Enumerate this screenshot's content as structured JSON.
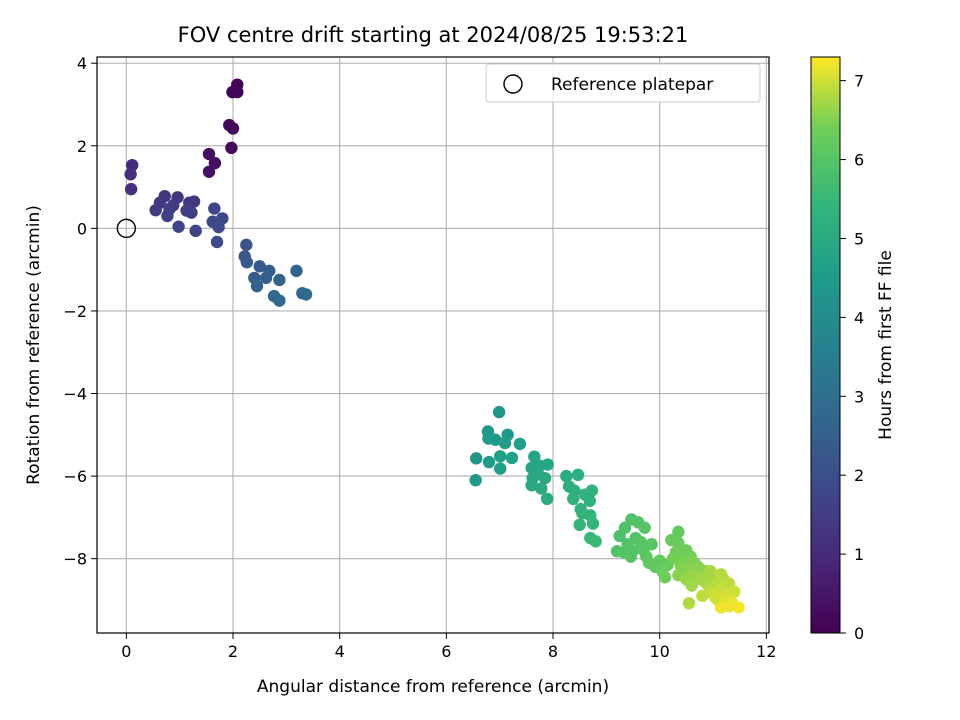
{
  "chart_data": {
    "type": "scatter",
    "title": "FOV centre drift starting at 2024/08/25 19:53:21",
    "xlabel": "Angular distance from reference (arcmin)",
    "ylabel": "Rotation from reference (arcmin)",
    "xlim": [
      -0.55,
      12.05
    ],
    "ylim": [
      -9.8,
      4.15
    ],
    "xticks": [
      0,
      2,
      4,
      6,
      8,
      10,
      12
    ],
    "yticks": [
      -8,
      -6,
      -4,
      -2,
      0,
      2,
      4
    ],
    "xtick_labels": [
      "0",
      "2",
      "4",
      "6",
      "8",
      "10",
      "12"
    ],
    "ytick_labels": [
      "−8",
      "−6",
      "−4",
      "−2",
      "0",
      "2",
      "4"
    ],
    "grid": true,
    "legend": {
      "position": "top-right",
      "entries": [
        "Reference platepar"
      ]
    },
    "reference_point": {
      "x": 0,
      "y": 0
    },
    "colorbar": {
      "label": "Hours from first FF file",
      "colormap": "viridis",
      "range": [
        0,
        7.3
      ],
      "ticks": [
        0,
        1,
        2,
        3,
        4,
        5,
        6,
        7
      ],
      "tick_labels": [
        "0",
        "1",
        "2",
        "3",
        "4",
        "5",
        "6",
        "7"
      ]
    },
    "points": [
      {
        "x": 2.08,
        "y": 3.48,
        "c": 0.05
      },
      {
        "x": 1.99,
        "y": 3.3,
        "c": 0.08
      },
      {
        "x": 2.08,
        "y": 3.3,
        "c": 0.1
      },
      {
        "x": 1.93,
        "y": 2.5,
        "c": 0.15
      },
      {
        "x": 2.0,
        "y": 2.42,
        "c": 0.18
      },
      {
        "x": 1.97,
        "y": 1.95,
        "c": 0.22
      },
      {
        "x": 1.55,
        "y": 1.8,
        "c": 0.28
      },
      {
        "x": 1.66,
        "y": 1.58,
        "c": 0.32
      },
      {
        "x": 1.55,
        "y": 1.37,
        "c": 0.38
      },
      {
        "x": 0.11,
        "y": 1.53,
        "c": 1.05
      },
      {
        "x": 0.08,
        "y": 1.31,
        "c": 1.1
      },
      {
        "x": 0.09,
        "y": 0.95,
        "c": 1.15
      },
      {
        "x": 0.72,
        "y": 0.78,
        "c": 1.25
      },
      {
        "x": 0.96,
        "y": 0.75,
        "c": 1.3
      },
      {
        "x": 0.63,
        "y": 0.62,
        "c": 1.35
      },
      {
        "x": 1.18,
        "y": 0.62,
        "c": 1.4
      },
      {
        "x": 1.27,
        "y": 0.65,
        "c": 1.42
      },
      {
        "x": 0.88,
        "y": 0.56,
        "c": 1.45
      },
      {
        "x": 0.55,
        "y": 0.44,
        "c": 1.5
      },
      {
        "x": 0.81,
        "y": 0.47,
        "c": 1.52
      },
      {
        "x": 1.13,
        "y": 0.43,
        "c": 1.55
      },
      {
        "x": 1.22,
        "y": 0.38,
        "c": 1.58
      },
      {
        "x": 0.77,
        "y": 0.3,
        "c": 1.6
      },
      {
        "x": 0.98,
        "y": 0.04,
        "c": 1.65
      },
      {
        "x": 1.3,
        "y": -0.06,
        "c": 1.7
      },
      {
        "x": 1.65,
        "y": 0.48,
        "c": 1.75
      },
      {
        "x": 1.62,
        "y": 0.16,
        "c": 1.78
      },
      {
        "x": 1.8,
        "y": 0.24,
        "c": 1.82
      },
      {
        "x": 1.73,
        "y": 0.03,
        "c": 1.85
      },
      {
        "x": 1.7,
        "y": -0.33,
        "c": 1.9
      },
      {
        "x": 2.25,
        "y": -0.4,
        "c": 2.2
      },
      {
        "x": 2.22,
        "y": -0.68,
        "c": 2.25
      },
      {
        "x": 2.26,
        "y": -0.82,
        "c": 2.3
      },
      {
        "x": 2.5,
        "y": -0.92,
        "c": 2.35
      },
      {
        "x": 2.68,
        "y": -1.03,
        "c": 2.4
      },
      {
        "x": 2.4,
        "y": -1.2,
        "c": 2.45
      },
      {
        "x": 2.62,
        "y": -1.2,
        "c": 2.5
      },
      {
        "x": 2.45,
        "y": -1.4,
        "c": 2.55
      },
      {
        "x": 2.87,
        "y": -1.25,
        "c": 2.6
      },
      {
        "x": 3.19,
        "y": -1.03,
        "c": 2.65
      },
      {
        "x": 2.77,
        "y": -1.64,
        "c": 2.7
      },
      {
        "x": 2.87,
        "y": -1.75,
        "c": 2.75
      },
      {
        "x": 3.3,
        "y": -1.57,
        "c": 2.8
      },
      {
        "x": 3.37,
        "y": -1.6,
        "c": 2.85
      },
      {
        "x": 6.99,
        "y": -4.45,
        "c": 4.3
      },
      {
        "x": 6.78,
        "y": -4.92,
        "c": 4.35
      },
      {
        "x": 7.15,
        "y": -5.0,
        "c": 4.4
      },
      {
        "x": 6.79,
        "y": -5.09,
        "c": 4.45
      },
      {
        "x": 6.92,
        "y": -5.12,
        "c": 4.5
      },
      {
        "x": 7.1,
        "y": -5.2,
        "c": 4.52
      },
      {
        "x": 7.38,
        "y": -5.22,
        "c": 4.55
      },
      {
        "x": 7.01,
        "y": -5.52,
        "c": 4.6
      },
      {
        "x": 7.23,
        "y": -5.56,
        "c": 4.62
      },
      {
        "x": 6.56,
        "y": -5.57,
        "c": 4.3
      },
      {
        "x": 6.8,
        "y": -5.66,
        "c": 4.5
      },
      {
        "x": 7.01,
        "y": -5.82,
        "c": 4.6
      },
      {
        "x": 6.55,
        "y": -6.1,
        "c": 4.4
      },
      {
        "x": 7.65,
        "y": -5.53,
        "c": 4.8
      },
      {
        "x": 7.9,
        "y": -5.72,
        "c": 4.9
      },
      {
        "x": 7.75,
        "y": -5.75,
        "c": 4.85
      },
      {
        "x": 7.6,
        "y": -5.8,
        "c": 4.8
      },
      {
        "x": 7.72,
        "y": -5.95,
        "c": 4.9
      },
      {
        "x": 7.62,
        "y": -6.05,
        "c": 4.88
      },
      {
        "x": 7.85,
        "y": -6.05,
        "c": 4.95
      },
      {
        "x": 7.6,
        "y": -6.22,
        "c": 4.9
      },
      {
        "x": 7.78,
        "y": -6.3,
        "c": 5.0
      },
      {
        "x": 7.89,
        "y": -6.55,
        "c": 5.05
      },
      {
        "x": 8.25,
        "y": -6.0,
        "c": 5.1
      },
      {
        "x": 8.47,
        "y": -5.97,
        "c": 5.15
      },
      {
        "x": 8.3,
        "y": -6.25,
        "c": 5.15
      },
      {
        "x": 8.4,
        "y": -6.35,
        "c": 5.2
      },
      {
        "x": 8.73,
        "y": -6.35,
        "c": 5.25
      },
      {
        "x": 8.6,
        "y": -6.45,
        "c": 5.25
      },
      {
        "x": 8.38,
        "y": -6.55,
        "c": 5.3
      },
      {
        "x": 8.69,
        "y": -6.6,
        "c": 5.3
      },
      {
        "x": 8.52,
        "y": -6.8,
        "c": 5.35
      },
      {
        "x": 8.55,
        "y": -6.9,
        "c": 5.35
      },
      {
        "x": 8.7,
        "y": -6.95,
        "c": 5.4
      },
      {
        "x": 8.5,
        "y": -7.18,
        "c": 5.4
      },
      {
        "x": 8.75,
        "y": -7.15,
        "c": 5.45
      },
      {
        "x": 8.7,
        "y": -7.5,
        "c": 5.5
      },
      {
        "x": 8.8,
        "y": -7.58,
        "c": 5.55
      },
      {
        "x": 9.47,
        "y": -7.05,
        "c": 5.9
      },
      {
        "x": 9.6,
        "y": -7.12,
        "c": 5.95
      },
      {
        "x": 9.35,
        "y": -7.25,
        "c": 5.9
      },
      {
        "x": 9.72,
        "y": -7.25,
        "c": 6.0
      },
      {
        "x": 9.25,
        "y": -7.45,
        "c": 5.85
      },
      {
        "x": 9.55,
        "y": -7.5,
        "c": 5.95
      },
      {
        "x": 9.65,
        "y": -7.6,
        "c": 6.0
      },
      {
        "x": 9.4,
        "y": -7.65,
        "c": 5.95
      },
      {
        "x": 9.85,
        "y": -7.65,
        "c": 6.05
      },
      {
        "x": 9.5,
        "y": -7.8,
        "c": 6.0
      },
      {
        "x": 9.2,
        "y": -7.82,
        "c": 5.9
      },
      {
        "x": 9.33,
        "y": -7.85,
        "c": 5.95
      },
      {
        "x": 9.7,
        "y": -7.8,
        "c": 6.05
      },
      {
        "x": 9.46,
        "y": -7.95,
        "c": 6.0
      },
      {
        "x": 9.75,
        "y": -7.95,
        "c": 6.1
      },
      {
        "x": 9.8,
        "y": -8.1,
        "c": 6.15
      },
      {
        "x": 10.0,
        "y": -8.05,
        "c": 6.2
      },
      {
        "x": 9.92,
        "y": -8.2,
        "c": 6.2
      },
      {
        "x": 10.15,
        "y": -8.15,
        "c": 6.25
      },
      {
        "x": 10.05,
        "y": -8.3,
        "c": 6.3
      },
      {
        "x": 10.35,
        "y": -7.35,
        "c": 6.2
      },
      {
        "x": 10.22,
        "y": -7.55,
        "c": 6.25
      },
      {
        "x": 10.35,
        "y": -7.62,
        "c": 6.3
      },
      {
        "x": 10.5,
        "y": -7.8,
        "c": 6.35
      },
      {
        "x": 10.3,
        "y": -7.85,
        "c": 6.35
      },
      {
        "x": 10.58,
        "y": -7.95,
        "c": 6.4
      },
      {
        "x": 10.25,
        "y": -8.0,
        "c": 6.4
      },
      {
        "x": 10.45,
        "y": -8.05,
        "c": 6.45
      },
      {
        "x": 10.65,
        "y": -8.1,
        "c": 6.5
      },
      {
        "x": 10.4,
        "y": -8.2,
        "c": 6.5
      },
      {
        "x": 10.72,
        "y": -8.2,
        "c": 6.55
      },
      {
        "x": 10.55,
        "y": -8.3,
        "c": 6.55
      },
      {
        "x": 10.85,
        "y": -8.3,
        "c": 6.6
      },
      {
        "x": 10.35,
        "y": -8.4,
        "c": 6.55
      },
      {
        "x": 10.62,
        "y": -8.4,
        "c": 6.65
      },
      {
        "x": 10.95,
        "y": -8.4,
        "c": 6.7
      },
      {
        "x": 10.5,
        "y": -8.5,
        "c": 6.65
      },
      {
        "x": 10.78,
        "y": -8.5,
        "c": 6.7
      },
      {
        "x": 11.05,
        "y": -8.45,
        "c": 6.75
      },
      {
        "x": 11.2,
        "y": -8.5,
        "c": 6.8
      },
      {
        "x": 10.88,
        "y": -8.6,
        "c": 6.75
      },
      {
        "x": 11.1,
        "y": -8.6,
        "c": 6.85
      },
      {
        "x": 11.3,
        "y": -8.6,
        "c": 6.9
      },
      {
        "x": 10.6,
        "y": -8.65,
        "c": 6.7
      },
      {
        "x": 10.95,
        "y": -8.72,
        "c": 6.85
      },
      {
        "x": 11.15,
        "y": -8.75,
        "c": 6.95
      },
      {
        "x": 11.4,
        "y": -8.8,
        "c": 7.0
      },
      {
        "x": 11.0,
        "y": -8.85,
        "c": 6.95
      },
      {
        "x": 11.25,
        "y": -8.9,
        "c": 7.05
      },
      {
        "x": 10.8,
        "y": -8.9,
        "c": 6.9
      },
      {
        "x": 11.1,
        "y": -9.0,
        "c": 7.1
      },
      {
        "x": 11.35,
        "y": -9.05,
        "c": 7.15
      },
      {
        "x": 10.55,
        "y": -9.08,
        "c": 6.8
      },
      {
        "x": 11.48,
        "y": -9.18,
        "c": 7.25
      },
      {
        "x": 11.15,
        "y": -9.18,
        "c": 7.2
      },
      {
        "x": 11.3,
        "y": -9.15,
        "c": 7.2
      },
      {
        "x": 11.05,
        "y": -8.95,
        "c": 7.0
      },
      {
        "x": 10.95,
        "y": -8.3,
        "c": 6.75
      },
      {
        "x": 11.15,
        "y": -8.38,
        "c": 6.85
      },
      {
        "x": 10.1,
        "y": -8.45,
        "c": 6.4
      }
    ]
  }
}
